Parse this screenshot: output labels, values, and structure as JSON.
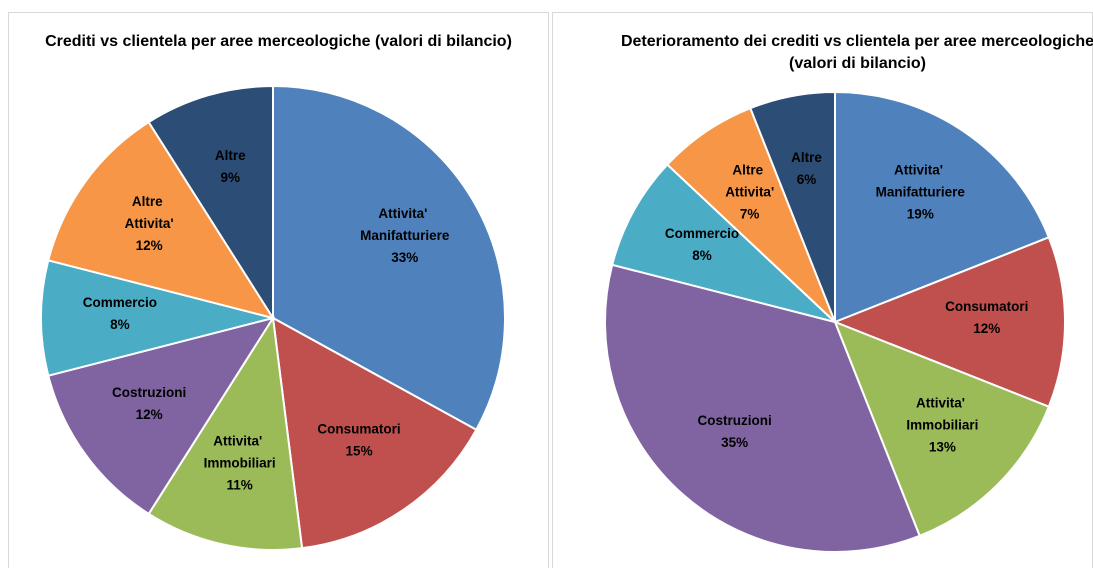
{
  "chart_data": [
    {
      "type": "pie",
      "title": "Crediti vs clientela per aree merceologiche (valori di bilancio)",
      "categories": [
        "Attivita' Manifatturiere",
        "Consumatori",
        "Attivita' Immobiliari",
        "Costruzioni",
        "Commercio",
        "Altre Attivita'",
        "Altre"
      ],
      "values": [
        33,
        15,
        11,
        12,
        8,
        12,
        9
      ],
      "value_labels": [
        "33%",
        "15%",
        "11%",
        "12%",
        "8%",
        "12%",
        "9%"
      ],
      "colors": [
        "#4f81bd",
        "#c0504d",
        "#9bbb59",
        "#8064a2",
        "#4bacc6",
        "#f79646",
        "#2c4d75"
      ]
    },
    {
      "type": "pie",
      "title": "Deterioramento dei crediti vs clientela per aree merceologiche (valori di bilancio)",
      "categories": [
        "Attivita' Manifatturiere",
        "Consumatori",
        "Attivita' Immobiliari",
        "Costruzioni",
        "Commercio",
        "Altre Attivita'",
        "Altre"
      ],
      "values": [
        19,
        12,
        13,
        35,
        8,
        7,
        6
      ],
      "value_labels": [
        "19%",
        "12%",
        "13%",
        "35%",
        "8%",
        "7%",
        "6%"
      ],
      "colors": [
        "#4f81bd",
        "#c0504d",
        "#9bbb59",
        "#8064a2",
        "#4bacc6",
        "#f79646",
        "#2c4d75"
      ]
    }
  ]
}
